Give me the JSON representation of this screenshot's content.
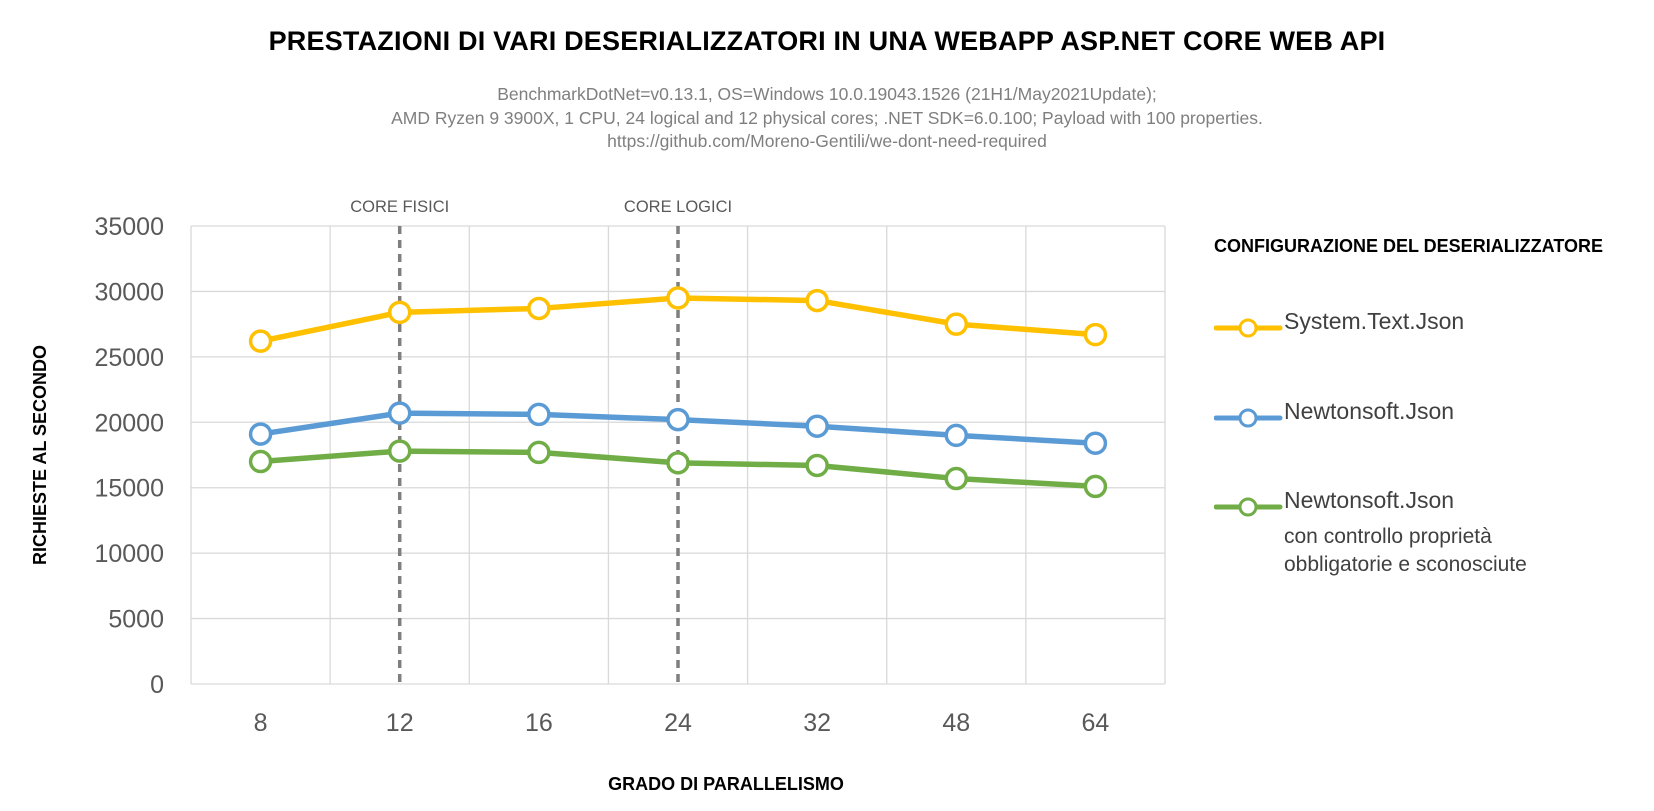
{
  "chart_data": {
    "type": "line",
    "title": "PRESTAZIONI DI VARI DESERIALIZZATORI IN UNA WEBAPP ASP.NET CORE WEB API",
    "subtitle": [
      "BenchmarkDotNet=v0.13.1, OS=Windows 10.0.19043.1526 (21H1/May2021Update);",
      "AMD Ryzen 9 3900X, 1 CPU, 24 logical and 12 physical cores; .NET SDK=6.0.100; Payload with 100 properties.",
      "https://github.com/Moreno-Gentili/we-dont-need-required"
    ],
    "xlabel": "GRADO DI PARALLELISMO",
    "ylabel": "RICHIESTE AL SECONDO",
    "categories": [
      "8",
      "12",
      "16",
      "24",
      "32",
      "48",
      "64"
    ],
    "ylim": [
      0,
      35000
    ],
    "yticks": [
      "0",
      "5000",
      "10000",
      "15000",
      "20000",
      "25000",
      "30000",
      "35000"
    ],
    "grid": true,
    "legend_title": "CONFIGURAZIONE DEL DESERIALIZZATORE",
    "legend_position": "right",
    "annotations": [
      {
        "category": "12",
        "label": "CORE FISICI"
      },
      {
        "category": "24",
        "label": "CORE LOGICI"
      }
    ],
    "series": [
      {
        "name": "System.Text.Json",
        "color": "#FFC000",
        "values": [
          26200,
          28400,
          28700,
          29500,
          29300,
          27500,
          26700
        ]
      },
      {
        "name": "Newtonsoft.Json",
        "color": "#5B9BD5",
        "values": [
          19100,
          20700,
          20600,
          20200,
          19700,
          19000,
          18400
        ]
      },
      {
        "name": "Newtonsoft.Json",
        "note": [
          "con controllo proprietà",
          "obbligatorie e sconosciute"
        ],
        "color": "#70AD47",
        "values": [
          17000,
          17800,
          17700,
          16900,
          16700,
          15700,
          15100
        ]
      }
    ]
  }
}
